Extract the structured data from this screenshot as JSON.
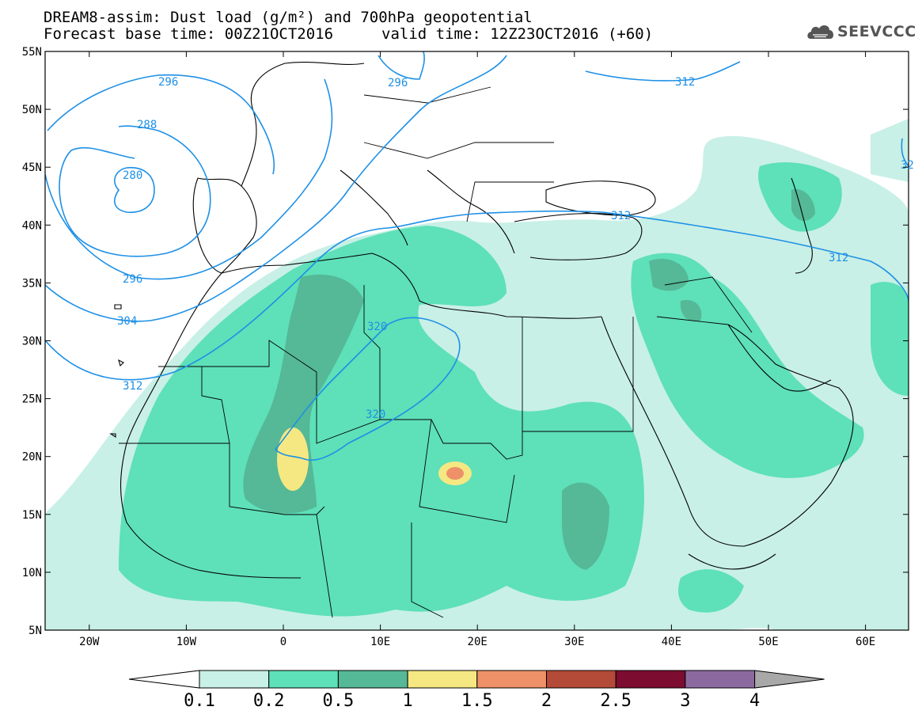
{
  "header": {
    "title_line1": "DREAM8-assim: Dust load (g/m²) and 700hPa geopotential",
    "base_time": "Forecast base time: 00Z21OCT2016",
    "valid_time": "valid time: 12Z23OCT2016 (+60)"
  },
  "logo": {
    "text": "SEEVCCC",
    "icon": "cloud-logo-icon"
  },
  "axes": {
    "lat_labels": [
      "55N",
      "50N",
      "45N",
      "40N",
      "35N",
      "30N",
      "25N",
      "20N",
      "15N",
      "10N",
      "5N"
    ],
    "lon_labels": [
      "20W",
      "10W",
      "0",
      "10E",
      "20E",
      "30E",
      "40E",
      "50E",
      "60E"
    ]
  },
  "contours": {
    "color": "#1e90e6",
    "labels": [
      "296",
      "296",
      "312",
      "288",
      "280",
      "296",
      "304",
      "312",
      "320",
      "320",
      "312",
      "312",
      "32"
    ]
  },
  "colorbar": {
    "ticks": [
      "0.1",
      "0.2",
      "0.5",
      "1",
      "1.5",
      "2",
      "2.5",
      "3",
      "4"
    ],
    "colors": [
      "#c8f0e6",
      "#5ee0b8",
      "#55b896",
      "#f5e882",
      "#ee9068",
      "#b44a38",
      "#7c0c30",
      "#8c6aa0",
      "#a8a8a8"
    ]
  }
}
